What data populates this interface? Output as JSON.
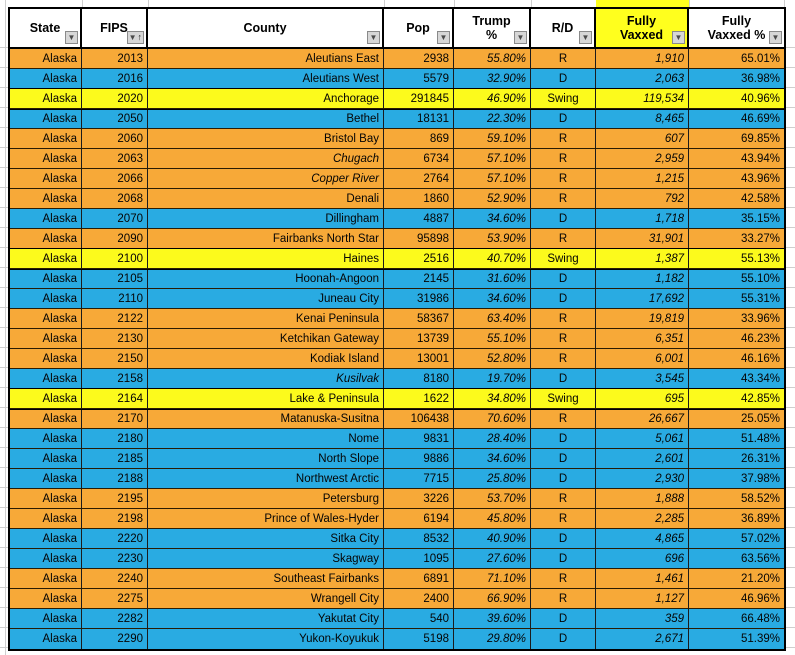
{
  "sheet": {
    "columns": [
      {
        "key": "state",
        "label": "State",
        "filter": true,
        "sort": null
      },
      {
        "key": "fips",
        "label": "FIPS",
        "filter": true,
        "sort": "asc"
      },
      {
        "key": "county",
        "label": "County",
        "filter": true,
        "sort": null
      },
      {
        "key": "pop",
        "label": "Pop",
        "filter": true,
        "sort": null
      },
      {
        "key": "trump",
        "label": "Trump %",
        "filter": true,
        "sort": null
      },
      {
        "key": "rd",
        "label": "R/D",
        "filter": true,
        "sort": null
      },
      {
        "key": "vaxxed",
        "label": "Fully Vaxxed",
        "filter": true,
        "sort": null,
        "highlight": true
      },
      {
        "key": "vaxxed_pct",
        "label": "Fully Vaxxed %",
        "filter": true,
        "sort": null
      }
    ],
    "rows": [
      {
        "state": "Alaska",
        "fips": "2013",
        "county": "Aleutians East",
        "pop": "2938",
        "trump": "55.80%",
        "rd": "R",
        "vaxxed": "1,910",
        "vaxxed_pct": "65.01%",
        "county_italic": false
      },
      {
        "state": "Alaska",
        "fips": "2016",
        "county": "Aleutians West",
        "pop": "5579",
        "trump": "32.90%",
        "rd": "D",
        "vaxxed": "2,063",
        "vaxxed_pct": "36.98%",
        "county_italic": false
      },
      {
        "state": "Alaska",
        "fips": "2020",
        "county": "Anchorage",
        "pop": "291845",
        "trump": "46.90%",
        "rd": "Swing",
        "vaxxed": "119,534",
        "vaxxed_pct": "40.96%",
        "county_italic": false
      },
      {
        "state": "Alaska",
        "fips": "2050",
        "county": "Bethel",
        "pop": "18131",
        "trump": "22.30%",
        "rd": "D",
        "vaxxed": "8,465",
        "vaxxed_pct": "46.69%",
        "county_italic": false
      },
      {
        "state": "Alaska",
        "fips": "2060",
        "county": "Bristol Bay",
        "pop": "869",
        "trump": "59.10%",
        "rd": "R",
        "vaxxed": "607",
        "vaxxed_pct": "69.85%",
        "county_italic": false
      },
      {
        "state": "Alaska",
        "fips": "2063",
        "county": "Chugach",
        "pop": "6734",
        "trump": "57.10%",
        "rd": "R",
        "vaxxed": "2,959",
        "vaxxed_pct": "43.94%",
        "county_italic": true
      },
      {
        "state": "Alaska",
        "fips": "2066",
        "county": "Copper River",
        "pop": "2764",
        "trump": "57.10%",
        "rd": "R",
        "vaxxed": "1,215",
        "vaxxed_pct": "43.96%",
        "county_italic": true
      },
      {
        "state": "Alaska",
        "fips": "2068",
        "county": "Denali",
        "pop": "1860",
        "trump": "52.90%",
        "rd": "R",
        "vaxxed": "792",
        "vaxxed_pct": "42.58%",
        "county_italic": false
      },
      {
        "state": "Alaska",
        "fips": "2070",
        "county": "Dillingham",
        "pop": "4887",
        "trump": "34.60%",
        "rd": "D",
        "vaxxed": "1,718",
        "vaxxed_pct": "35.15%",
        "county_italic": false
      },
      {
        "state": "Alaska",
        "fips": "2090",
        "county": "Fairbanks North Star",
        "pop": "95898",
        "trump": "53.90%",
        "rd": "R",
        "vaxxed": "31,901",
        "vaxxed_pct": "33.27%",
        "county_italic": false
      },
      {
        "state": "Alaska",
        "fips": "2100",
        "county": "Haines",
        "pop": "2516",
        "trump": "40.70%",
        "rd": "Swing",
        "vaxxed": "1,387",
        "vaxxed_pct": "55.13%",
        "county_italic": false
      },
      {
        "state": "Alaska",
        "fips": "2105",
        "county": "Hoonah-Angoon",
        "pop": "2145",
        "trump": "31.60%",
        "rd": "D",
        "vaxxed": "1,182",
        "vaxxed_pct": "55.10%",
        "county_italic": false
      },
      {
        "state": "Alaska",
        "fips": "2110",
        "county": "Juneau City",
        "pop": "31986",
        "trump": "34.60%",
        "rd": "D",
        "vaxxed": "17,692",
        "vaxxed_pct": "55.31%",
        "county_italic": false
      },
      {
        "state": "Alaska",
        "fips": "2122",
        "county": "Kenai Peninsula",
        "pop": "58367",
        "trump": "63.40%",
        "rd": "R",
        "vaxxed": "19,819",
        "vaxxed_pct": "33.96%",
        "county_italic": false
      },
      {
        "state": "Alaska",
        "fips": "2130",
        "county": "Ketchikan Gateway",
        "pop": "13739",
        "trump": "55.10%",
        "rd": "R",
        "vaxxed": "6,351",
        "vaxxed_pct": "46.23%",
        "county_italic": false
      },
      {
        "state": "Alaska",
        "fips": "2150",
        "county": "Kodiak Island",
        "pop": "13001",
        "trump": "52.80%",
        "rd": "R",
        "vaxxed": "6,001",
        "vaxxed_pct": "46.16%",
        "county_italic": false
      },
      {
        "state": "Alaska",
        "fips": "2158",
        "county": "Kusilvak",
        "pop": "8180",
        "trump": "19.70%",
        "rd": "D",
        "vaxxed": "3,545",
        "vaxxed_pct": "43.34%",
        "county_italic": true
      },
      {
        "state": "Alaska",
        "fips": "2164",
        "county": "Lake & Peninsula",
        "pop": "1622",
        "trump": "34.80%",
        "rd": "Swing",
        "vaxxed": "695",
        "vaxxed_pct": "42.85%",
        "county_italic": false
      },
      {
        "state": "Alaska",
        "fips": "2170",
        "county": "Matanuska-Susitna",
        "pop": "106438",
        "trump": "70.60%",
        "rd": "R",
        "vaxxed": "26,667",
        "vaxxed_pct": "25.05%",
        "county_italic": false
      },
      {
        "state": "Alaska",
        "fips": "2180",
        "county": "Nome",
        "pop": "9831",
        "trump": "28.40%",
        "rd": "D",
        "vaxxed": "5,061",
        "vaxxed_pct": "51.48%",
        "county_italic": false
      },
      {
        "state": "Alaska",
        "fips": "2185",
        "county": "North Slope",
        "pop": "9886",
        "trump": "34.60%",
        "rd": "D",
        "vaxxed": "2,601",
        "vaxxed_pct": "26.31%",
        "county_italic": false
      },
      {
        "state": "Alaska",
        "fips": "2188",
        "county": "Northwest Arctic",
        "pop": "7715",
        "trump": "25.80%",
        "rd": "D",
        "vaxxed": "2,930",
        "vaxxed_pct": "37.98%",
        "county_italic": false
      },
      {
        "state": "Alaska",
        "fips": "2195",
        "county": "Petersburg",
        "pop": "3226",
        "trump": "53.70%",
        "rd": "R",
        "vaxxed": "1,888",
        "vaxxed_pct": "58.52%",
        "county_italic": false
      },
      {
        "state": "Alaska",
        "fips": "2198",
        "county": "Prince of Wales-Hyder",
        "pop": "6194",
        "trump": "45.80%",
        "rd": "R",
        "vaxxed": "2,285",
        "vaxxed_pct": "36.89%",
        "county_italic": false
      },
      {
        "state": "Alaska",
        "fips": "2220",
        "county": "Sitka City",
        "pop": "8532",
        "trump": "40.90%",
        "rd": "D",
        "vaxxed": "4,865",
        "vaxxed_pct": "57.02%",
        "county_italic": false
      },
      {
        "state": "Alaska",
        "fips": "2230",
        "county": "Skagway",
        "pop": "1095",
        "trump": "27.60%",
        "rd": "D",
        "vaxxed": "696",
        "vaxxed_pct": "63.56%",
        "county_italic": false
      },
      {
        "state": "Alaska",
        "fips": "2240",
        "county": "Southeast Fairbanks",
        "pop": "6891",
        "trump": "71.10%",
        "rd": "R",
        "vaxxed": "1,461",
        "vaxxed_pct": "21.20%",
        "county_italic": false
      },
      {
        "state": "Alaska",
        "fips": "2275",
        "county": "Wrangell City",
        "pop": "2400",
        "trump": "66.90%",
        "rd": "R",
        "vaxxed": "1,127",
        "vaxxed_pct": "46.96%",
        "county_italic": false
      },
      {
        "state": "Alaska",
        "fips": "2282",
        "county": "Yakutat City",
        "pop": "540",
        "trump": "39.60%",
        "rd": "D",
        "vaxxed": "359",
        "vaxxed_pct": "66.48%",
        "county_italic": false
      },
      {
        "state": "Alaska",
        "fips": "2290",
        "county": "Yukon-Koyukuk",
        "pop": "5198",
        "trump": "29.80%",
        "rd": "D",
        "vaxxed": "2,671",
        "vaxxed_pct": "51.39%",
        "county_italic": false
      }
    ]
  },
  "icons": {
    "filter_dropdown": "▼",
    "sort_ascending": "↑"
  },
  "colors": {
    "republican_row": "#F7A938",
    "democrat_row": "#29ABE2",
    "swing_row": "#FCFA1C",
    "header_highlight": "#FFFF1E",
    "text": "#050505"
  }
}
